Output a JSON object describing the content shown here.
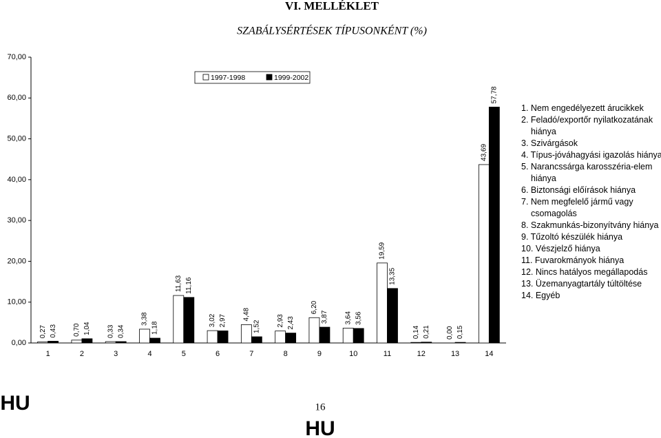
{
  "header": {
    "title": "VI. MELLÉKLET"
  },
  "chart_data": {
    "type": "bar",
    "title": "SZABÁLYSÉRTÉSEK TÍPUSONKÉNT (%)",
    "categories": [
      "1",
      "2",
      "3",
      "4",
      "5",
      "6",
      "7",
      "8",
      "9",
      "10",
      "11",
      "12",
      "13",
      "14"
    ],
    "series": [
      {
        "name": "1997-1998",
        "color": "#ffffff",
        "values": [
          0.27,
          0.7,
          0.33,
          3.38,
          11.63,
          3.02,
          4.48,
          2.93,
          6.2,
          3.64,
          19.59,
          0.14,
          0.0,
          43.69
        ],
        "value_labels": [
          "0,27",
          "0,70",
          "0,33",
          "3,38",
          "11,63",
          "3,02",
          "4,48",
          "2,93",
          "6,20",
          "3,64",
          "19,59",
          "0,14",
          "0,00",
          "43,69"
        ]
      },
      {
        "name": "1999-2002",
        "color": "#000000",
        "values": [
          0.43,
          1.04,
          0.34,
          1.18,
          11.16,
          2.97,
          1.52,
          2.43,
          3.87,
          3.56,
          13.35,
          0.21,
          0.15,
          57.78
        ],
        "value_labels": [
          "0,43",
          "1,04",
          "0,34",
          "1,18",
          "11,16",
          "2,97",
          "1,52",
          "2,43",
          "3,87",
          "3,56",
          "13,35",
          "0,21",
          "0,15",
          "57,78"
        ]
      }
    ],
    "ylim": [
      0,
      70
    ],
    "yticks": [
      {
        "value": 0,
        "label": "0,00"
      },
      {
        "value": 10,
        "label": "10,00"
      },
      {
        "value": 20,
        "label": "20,00"
      },
      {
        "value": 30,
        "label": "30,00"
      },
      {
        "value": 40,
        "label": "40,00"
      },
      {
        "value": 50,
        "label": "50,00"
      },
      {
        "value": 60,
        "label": "60,00"
      },
      {
        "value": 70,
        "label": "70,00"
      }
    ],
    "grid": false,
    "legend": "top"
  },
  "notes": [
    "1. Nem engedélyezett árucikkek",
    "2. Feladó/exportőr nyilatkozatának hiánya",
    "3. Szivárgások",
    "4. Típus-jóváhagyási igazolás hiánya",
    "5. Narancssárga karosszéria-elem hiánya",
    "6. Biztonsági előírások hiánya",
    "7. Nem megfelelő jármű vagy csomagolás",
    "8. Szakmunkás-bizonyítvány hiánya",
    "9. Tűzoltó készülék hiánya",
    "10. Vészjelző hiánya",
    "11. Fuvarokmányok hiánya",
    "12. Nincs hatályos megállapodás",
    "13. Üzemanyagtartály túltöltése",
    "14. Egyéb"
  ],
  "footer": {
    "left": "HU",
    "page": "16",
    "center": "HU"
  }
}
